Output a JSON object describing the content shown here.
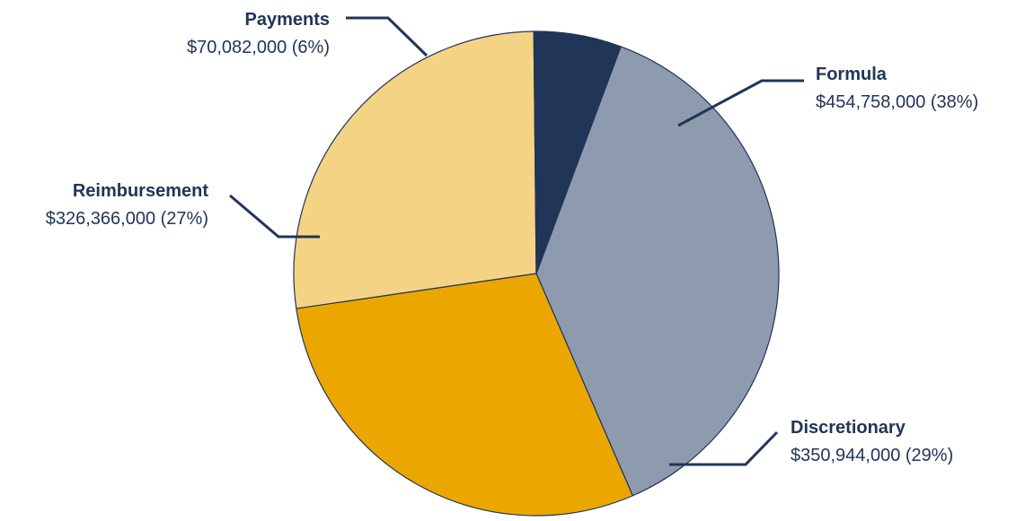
{
  "chart_data": {
    "type": "pie",
    "title": "",
    "slices": [
      {
        "name": "Formula",
        "value": 454758000,
        "display": "$454,758,000 (38%)",
        "color": "#8e9aae"
      },
      {
        "name": "Discretionary",
        "value": 350944000,
        "display": "$350,944,000 (29%)",
        "color": "#eba700"
      },
      {
        "name": "Reimbursement",
        "value": 326366000,
        "display": "$326,366,000 (27%)",
        "color": "#f5d384"
      },
      {
        "name": "Payments",
        "value": 70082000,
        "display": "$70,082,000 (6%)",
        "color": "#213559"
      }
    ],
    "start_angle_deg": 20.4,
    "direction": "clockwise",
    "label_color": "#213559",
    "stroke_color": "#213559",
    "legend": "none"
  }
}
